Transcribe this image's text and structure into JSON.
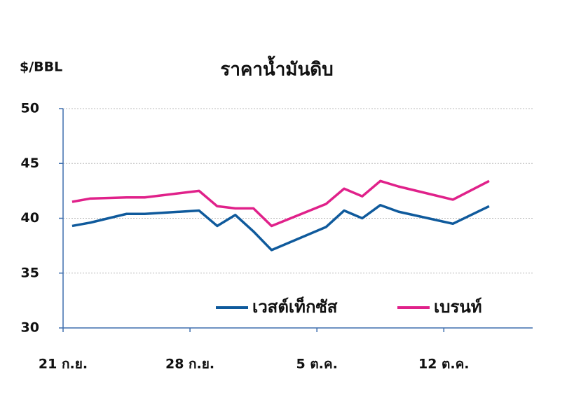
{
  "chart_data": {
    "type": "line",
    "title": "ราคาน้ำมันดิบ",
    "y_label": "$/BBL",
    "x": [
      0.5,
      1.5,
      3.5,
      4.5,
      7.5,
      8.5,
      9.5,
      10.5,
      11.5,
      14.5,
      15.5,
      16.5,
      17.5,
      18.5,
      21.5,
      23.5
    ],
    "series": [
      {
        "name": "เวสต์เท็กซัส",
        "color": "#0f5a9c",
        "values": [
          39.3,
          39.6,
          40.4,
          40.4,
          40.7,
          39.3,
          40.3,
          38.8,
          37.1,
          39.2,
          40.7,
          40.0,
          41.2,
          40.6,
          39.5,
          41.1
        ]
      },
      {
        "name": "เบรนท์",
        "color": "#e0218a",
        "values": [
          41.5,
          41.8,
          41.9,
          41.9,
          42.5,
          41.1,
          40.9,
          40.9,
          39.3,
          41.3,
          42.7,
          42.0,
          43.4,
          42.9,
          41.7,
          43.4
        ]
      }
    ],
    "xlim": [
      0,
      25.9
    ],
    "xticks": [
      {
        "value": 0,
        "label": "21 ก.ย."
      },
      {
        "value": 7,
        "label": "28 ก.ย."
      },
      {
        "value": 14,
        "label": "5 ต.ค."
      },
      {
        "value": 21,
        "label": "12 ต.ค."
      }
    ],
    "ylim": [
      30,
      50
    ],
    "yticks": [
      30,
      35,
      40,
      45,
      50
    ],
    "grid": true
  }
}
